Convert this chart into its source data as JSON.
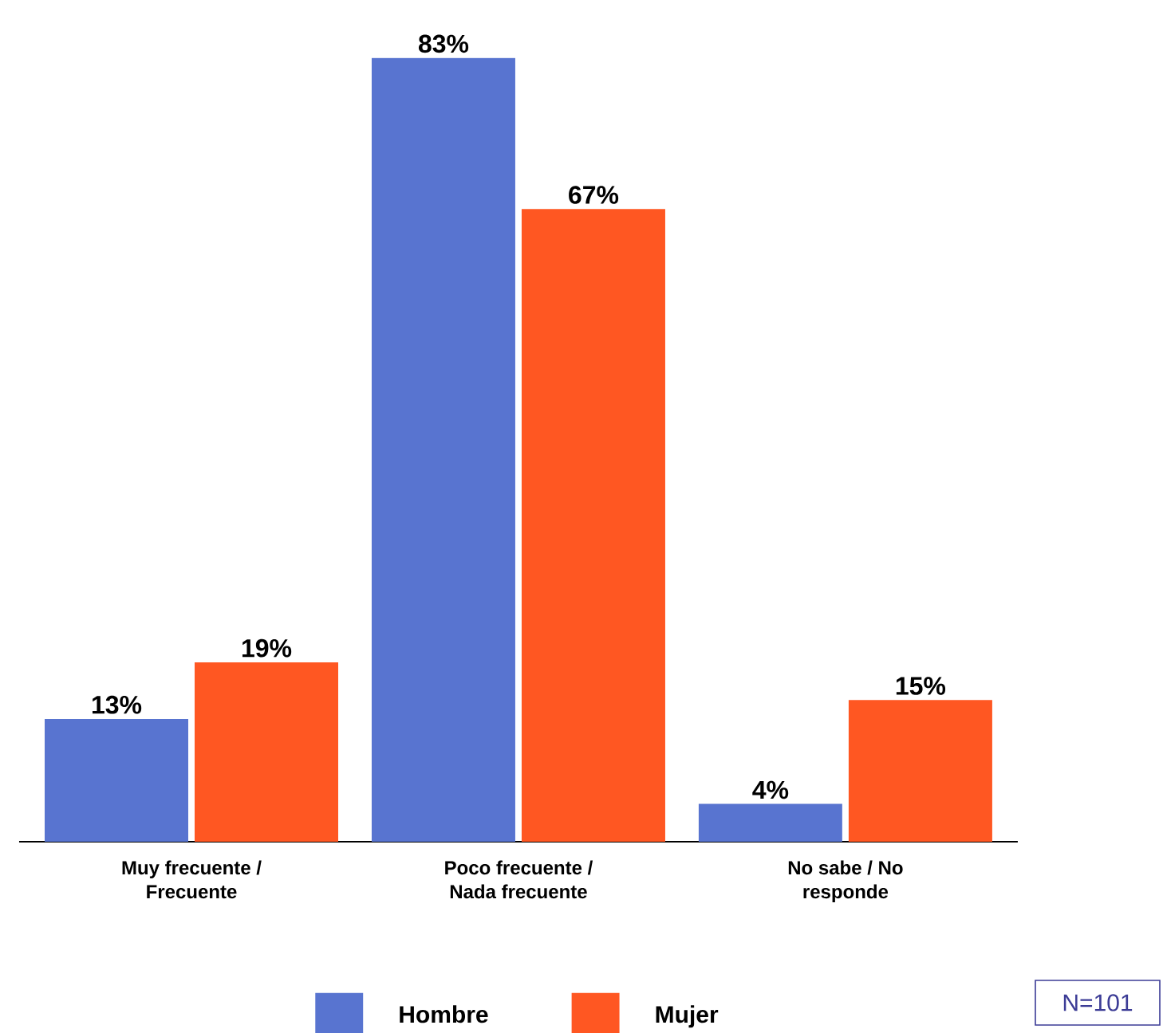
{
  "chart_data": {
    "type": "bar",
    "categories": [
      "Muy frecuente / Frecuente",
      "Poco frecuente / Nada frecuente",
      "No sabe / No responde"
    ],
    "series": [
      {
        "name": "Hombre",
        "color": "#5874d0",
        "values": [
          13,
          83,
          4
        ],
        "value_labels": [
          "13%",
          "83%",
          "4%"
        ]
      },
      {
        "name": "Mujer",
        "color": "#ff5722",
        "values": [
          19,
          67,
          15
        ],
        "value_labels": [
          "19%",
          "67%",
          "15%"
        ]
      }
    ],
    "legend": "bottom",
    "annotations": [
      "N=101"
    ]
  }
}
